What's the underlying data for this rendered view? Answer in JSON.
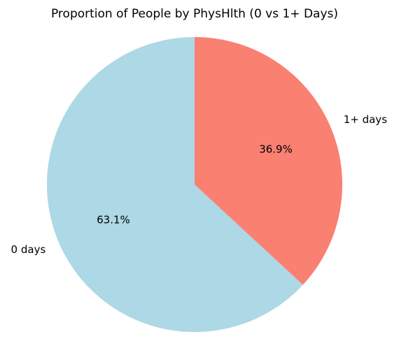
{
  "chart_data": {
    "type": "pie",
    "title": "Proportion of People by PhysHlth (0 vs 1+ Days)",
    "categories": [
      "0 days",
      "1+ days"
    ],
    "values": [
      63.1,
      36.9
    ],
    "percent_labels": [
      "63.1%",
      "36.9%"
    ],
    "colors": [
      "#add8e6",
      "#fa8072"
    ],
    "start_angle_deg": 90,
    "direction": "counterclockwise"
  }
}
